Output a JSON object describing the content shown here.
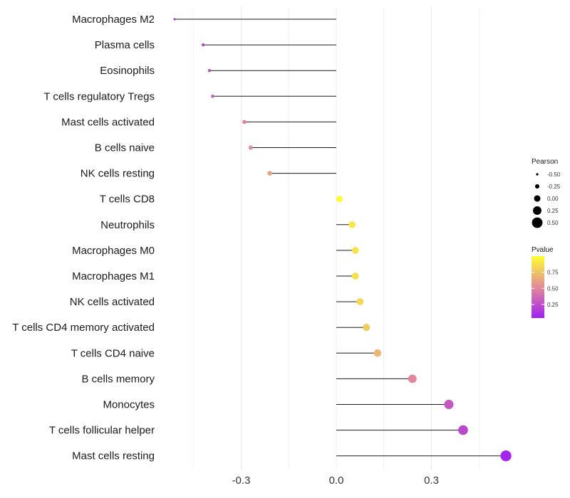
{
  "chart_data": {
    "type": "lollipop",
    "title": "",
    "xlabel": "",
    "ylabel": "",
    "xlim": [
      -0.52,
      0.55
    ],
    "x_ticks": [
      -0.3,
      0.0,
      0.3
    ],
    "x_tick_labels": [
      "-0.3",
      "0.0",
      "0.3"
    ],
    "grid": true,
    "categories": [
      "Macrophages M2",
      "Plasma cells",
      "Eosinophils",
      "T cells regulatory  Tregs",
      "Mast cells activated",
      "B cells naive",
      "NK cells resting",
      "T cells CD8",
      "Neutrophils",
      "Macrophages M0",
      "Macrophages M1",
      "NK cells activated",
      "T cells CD4 memory activated",
      "T cells CD4 naive",
      "B cells memory",
      "Monocytes",
      "T cells follicular helper",
      "Mast cells resting"
    ],
    "pearson": [
      -0.51,
      -0.42,
      -0.4,
      -0.39,
      -0.29,
      -0.27,
      -0.21,
      0.01,
      0.05,
      0.06,
      0.06,
      0.075,
      0.095,
      0.13,
      0.24,
      0.355,
      0.4,
      0.535
    ],
    "pvalue": [
      0.05,
      0.18,
      0.25,
      0.28,
      0.48,
      0.52,
      0.62,
      0.98,
      0.9,
      0.88,
      0.87,
      0.84,
      0.78,
      0.7,
      0.5,
      0.3,
      0.22,
      0.06
    ],
    "legend_size": {
      "title": "Pearson",
      "values": [
        -0.5,
        -0.25,
        0.0,
        0.25,
        0.5
      ],
      "labels": [
        "-0.50",
        "-0.25",
        "0.00",
        "0.25",
        "0.50"
      ]
    },
    "legend_color": {
      "title": "Pvalue",
      "range": [
        0.04,
        1.0
      ],
      "ticks": [
        0.25,
        0.5,
        0.75
      ],
      "labels": [
        "0.25",
        "0.50",
        "0.75"
      ],
      "low_color": "#a020f0",
      "mid_color": "#e0879c",
      "high_color": "#ffff33"
    },
    "line_color": "#1a1a1a",
    "grid_color": "#ebebeb"
  }
}
